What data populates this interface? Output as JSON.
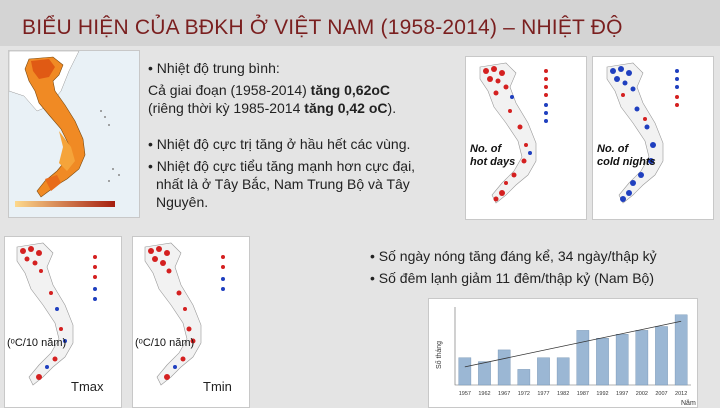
{
  "slide": {
    "title": "BIỂU HIỆN CỦA BĐKH Ở VIỆT NAM (1958-2014) – NHIỆT ĐỘ",
    "colors": {
      "title": "#7a1f1f",
      "background": "#e4e4e4",
      "title_bar": "#d4d4d4",
      "hot": "#d42020",
      "cold": "#1f3fbf",
      "bar": "#9bb7d4"
    }
  },
  "avg_temp": {
    "heading": "• Nhiệt độ trung bình:",
    "line1_prefix": "Cả giai đoạn (1958-2014) ",
    "line1_bold": "tăng 0,62",
    "line1_unit": "oC",
    "line2_prefix": "(riêng thời kỳ 1985-2014 ",
    "line2_bold": "tăng 0,42 ",
    "line2_unit": "oC",
    "line2_suffix": ")."
  },
  "extremes": {
    "bullet1": "• Nhiệt độ cực trị tăng ở hầu hết các vùng.",
    "bullet2_line1": "• Nhiệt độ cực tiểu tăng mạnh hơn cực đại,",
    "bullet2_line2": "nhất là ở Tây Bắc, Nam Trung Bộ và Tây",
    "bullet2_line3": "Nguyên."
  },
  "maps": {
    "hot_days_label": "No. of\nhot days",
    "cold_nights_label": "No. of\ncold nights",
    "tmax_caption": "(ᵒC/10 năm)",
    "tmin_caption": "(ᵒC/10 năm)",
    "tmax_label": "Tmax",
    "tmin_label": "Tmin"
  },
  "days_nights": {
    "bullet1": "• Số ngày nóng tăng đáng kể, 34 ngày/thập kỷ",
    "bullet2": "• Số đêm lạnh giảm 11 đêm/thập kỷ (Nam Bộ)"
  },
  "chart_data": {
    "type": "bar",
    "ylabel": "Số tháng",
    "xlabel": "Năm",
    "categories": [
      "1957",
      "1962",
      "1967",
      "1972",
      "1977",
      "1982",
      "1987",
      "1992",
      "1997",
      "2002",
      "2007",
      "2012"
    ],
    "values": [
      7,
      6,
      9,
      4,
      7,
      7,
      14,
      12,
      13,
      14,
      15,
      18
    ],
    "ylim": [
      0,
      20
    ],
    "trend": true
  }
}
